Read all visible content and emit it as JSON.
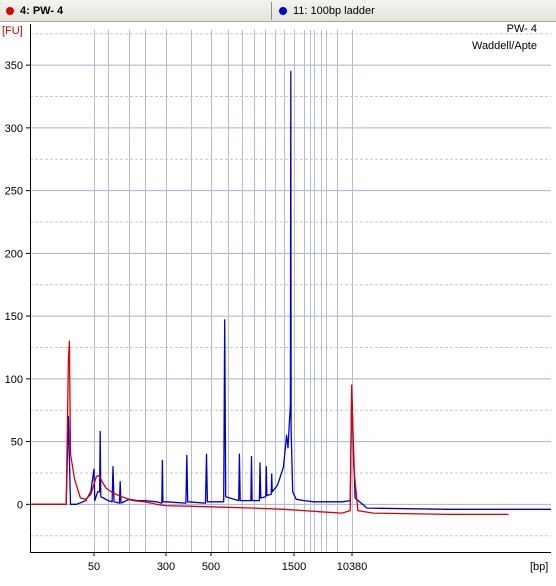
{
  "legend": [
    {
      "label": "4: PW- 4",
      "color": "#dd0000"
    },
    {
      "label": "11: 100bp ladder",
      "color": "#0000dd"
    }
  ],
  "sample_name": "PW- 4",
  "sample_owner": "Waddell/Apte",
  "chart_data": {
    "type": "line",
    "ylabel": "[FU]",
    "xlabel": "[bp]",
    "ylim": [
      -38,
      378
    ],
    "yticks": [
      0,
      50,
      100,
      150,
      200,
      250,
      300,
      350
    ],
    "x_tick_labels": [
      "50",
      "300",
      "500",
      "1500",
      "10380"
    ],
    "ladder_sizes_bp": [
      15,
      50,
      100,
      150,
      200,
      300,
      400,
      500,
      600,
      700,
      800,
      900,
      1000,
      1200,
      1500,
      2000,
      2500,
      3000,
      4000,
      5000,
      7000,
      10380
    ],
    "grid": "on",
    "series": [
      {
        "name": "11: 100bp ladder",
        "color": "#0000cc",
        "points": [
          [
            30,
            0
          ],
          [
            35,
            0
          ],
          [
            36,
            70
          ],
          [
            37,
            0
          ],
          [
            40,
            0
          ],
          [
            45,
            3
          ],
          [
            48,
            10
          ],
          [
            50,
            28
          ],
          [
            52,
            3
          ],
          [
            60,
            10
          ],
          [
            66,
            10
          ],
          [
            68,
            58
          ],
          [
            70,
            6
          ],
          [
            80,
            5
          ],
          [
            100,
            3
          ],
          [
            108,
            2
          ],
          [
            110,
            30
          ],
          [
            112,
            2
          ],
          [
            124,
            1
          ],
          [
            126,
            18
          ],
          [
            128,
            1
          ],
          [
            150,
            4
          ],
          [
            175,
            3
          ],
          [
            200,
            3
          ],
          [
            250,
            2
          ],
          [
            277,
            1
          ],
          [
            280,
            35
          ],
          [
            283,
            2
          ],
          [
            300,
            2
          ],
          [
            376,
            1
          ],
          [
            380,
            39
          ],
          [
            384,
            2
          ],
          [
            470,
            1
          ],
          [
            475,
            40
          ],
          [
            480,
            2
          ],
          [
            574,
            2
          ],
          [
            580,
            147
          ],
          [
            586,
            6
          ],
          [
            675,
            3
          ],
          [
            680,
            40
          ],
          [
            686,
            3
          ],
          [
            770,
            3
          ],
          [
            775,
            38
          ],
          [
            780,
            3
          ],
          [
            845,
            3
          ],
          [
            850,
            33
          ],
          [
            857,
            5
          ],
          [
            905,
            6
          ],
          [
            910,
            30
          ],
          [
            916,
            7
          ],
          [
            960,
            8
          ],
          [
            965,
            24
          ],
          [
            970,
            10
          ],
          [
            1050,
            15
          ],
          [
            1100,
            20
          ],
          [
            1200,
            30
          ],
          [
            1280,
            55
          ],
          [
            1320,
            45
          ],
          [
            1390,
            80
          ],
          [
            1400,
            345
          ],
          [
            1410,
            60
          ],
          [
            1460,
            10
          ],
          [
            1600,
            4
          ],
          [
            2000,
            3
          ],
          [
            3000,
            2
          ],
          [
            5000,
            2
          ],
          [
            8000,
            2
          ],
          [
            9900,
            3
          ],
          [
            10300,
            90
          ],
          [
            10600,
            5
          ],
          [
            11500,
            -3
          ],
          [
            20000,
            -4
          ],
          [
            40000,
            -4
          ]
        ]
      },
      {
        "name": "4: PW- 4",
        "color": "#dd0000",
        "points": [
          [
            30,
            0
          ],
          [
            35,
            0
          ],
          [
            36,
            115
          ],
          [
            36.5,
            130
          ],
          [
            37,
            40
          ],
          [
            39,
            20
          ],
          [
            42,
            5
          ],
          [
            45,
            4
          ],
          [
            48,
            8
          ],
          [
            52,
            18
          ],
          [
            56,
            22
          ],
          [
            60,
            23
          ],
          [
            66,
            22
          ],
          [
            75,
            18
          ],
          [
            90,
            13
          ],
          [
            110,
            9
          ],
          [
            130,
            6
          ],
          [
            160,
            3
          ],
          [
            200,
            2
          ],
          [
            250,
            0
          ],
          [
            300,
            -1
          ],
          [
            500,
            -2
          ],
          [
            800,
            -3
          ],
          [
            1200,
            -4
          ],
          [
            2000,
            -5
          ],
          [
            4000,
            -6
          ],
          [
            8000,
            -7
          ],
          [
            9900,
            -5
          ],
          [
            10300,
            95
          ],
          [
            10500,
            30
          ],
          [
            10800,
            -5
          ],
          [
            12000,
            -7
          ],
          [
            20000,
            -8
          ],
          [
            30000,
            -8
          ]
        ]
      }
    ]
  }
}
